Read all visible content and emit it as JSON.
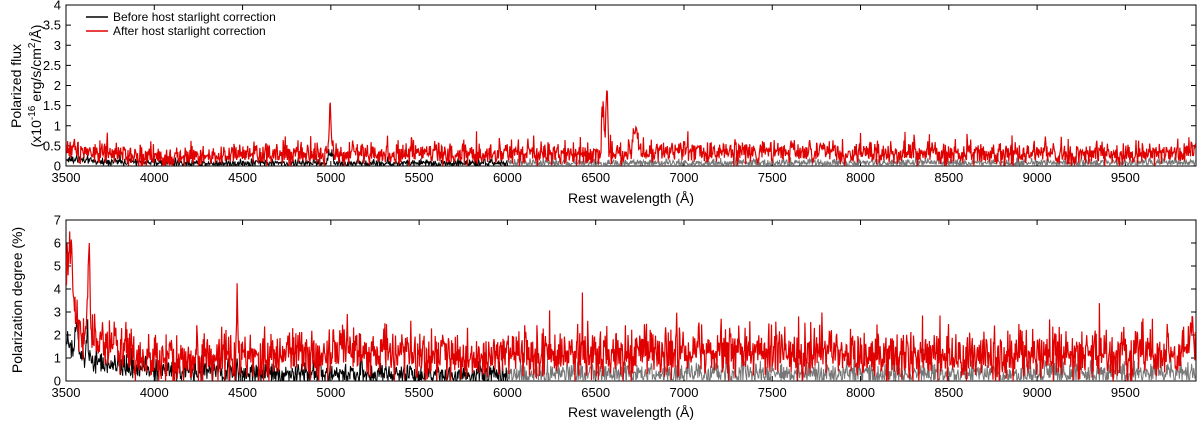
{
  "chart_data": [
    {
      "type": "line",
      "xlabel": "Rest wavelength (Å)",
      "ylabel": "Polarized flux",
      "ylabel_units": {
        "prefix": "(x10",
        "exp": "-16",
        "mid": " erg/s/cm",
        "exp2": "2",
        "suffix": "/Å)"
      },
      "xlim": [
        3500,
        9900
      ],
      "ylim": [
        0,
        4
      ],
      "xticks": [
        3500,
        4000,
        4500,
        5000,
        5500,
        6000,
        6500,
        7000,
        7500,
        8000,
        8500,
        9000,
        9500
      ],
      "yticks": [
        0,
        0.5,
        1,
        1.5,
        2,
        2.5,
        3,
        3.5,
        4
      ],
      "ytick_labels": [
        "0",
        "0.5",
        "1",
        "1.5",
        "2",
        "2.5",
        "3",
        "3.5",
        "4"
      ],
      "legend": {
        "placement": "top-left",
        "entries": [
          {
            "label": "Before host starlight correction",
            "color": "#000000"
          },
          {
            "label": "After host starlight correction",
            "color": "#e00000"
          }
        ]
      },
      "series": [
        {
          "name": "Before host starlight correction",
          "color": "#000000",
          "color_beyond_6000": "#777777",
          "baseline": [
            [
              3500,
              0.16
            ],
            [
              3700,
              0.12
            ],
            [
              4000,
              0.08
            ],
            [
              4500,
              0.07
            ],
            [
              5000,
              0.07
            ],
            [
              5500,
              0.07
            ],
            [
              6000,
              0.07
            ],
            [
              6500,
              0.07
            ],
            [
              7000,
              0.07
            ],
            [
              8000,
              0.08
            ],
            [
              9000,
              0.08
            ],
            [
              9900,
              0.08
            ]
          ],
          "noise": 0.05,
          "features": [
            [
              4990,
              0.25,
              6
            ],
            [
              5007,
              0.3,
              5
            ]
          ]
        },
        {
          "name": "After host starlight correction",
          "color": "#e00000",
          "baseline": [
            [
              3500,
              0.45
            ],
            [
              3700,
              0.32
            ],
            [
              4000,
              0.2
            ],
            [
              4500,
              0.25
            ],
            [
              5000,
              0.3
            ],
            [
              5500,
              0.3
            ],
            [
              6000,
              0.3
            ],
            [
              6500,
              0.3
            ],
            [
              7000,
              0.35
            ],
            [
              7500,
              0.35
            ],
            [
              8000,
              0.33
            ],
            [
              8500,
              0.3
            ],
            [
              9000,
              0.3
            ],
            [
              9500,
              0.3
            ],
            [
              9900,
              0.35
            ]
          ],
          "noise": 0.14,
          "features": [
            [
              4996,
              1.38,
              5
            ],
            [
              6540,
              1.3,
              6
            ],
            [
              6563,
              1.5,
              6
            ],
            [
              6717,
              0.45,
              7
            ],
            [
              6731,
              0.4,
              7
            ],
            [
              9048,
              0.35,
              5
            ],
            [
              8390,
              0.1,
              25
            ]
          ]
        }
      ]
    },
    {
      "type": "line",
      "xlabel": "Rest wavelength (Å)",
      "ylabel": "Polarization degree (%)",
      "xlim": [
        3500,
        9900
      ],
      "ylim": [
        0,
        7
      ],
      "xticks": [
        3500,
        4000,
        4500,
        5000,
        5500,
        6000,
        6500,
        7000,
        7500,
        8000,
        8500,
        9000,
        9500
      ],
      "yticks": [
        0,
        1,
        2,
        3,
        4,
        5,
        6,
        7
      ],
      "ytick_labels": [
        "0",
        "1",
        "2",
        "3",
        "4",
        "5",
        "6",
        "7"
      ],
      "series": [
        {
          "name": "Before host starlight correction",
          "color": "#000000",
          "color_beyond_6000": "#777777",
          "baseline": [
            [
              3500,
              1.8
            ],
            [
              3550,
              1.1
            ],
            [
              3700,
              0.7
            ],
            [
              4000,
              0.5
            ],
            [
              4500,
              0.35
            ],
            [
              5000,
              0.3
            ],
            [
              6000,
              0.3
            ],
            [
              7000,
              0.3
            ],
            [
              8000,
              0.3
            ],
            [
              9000,
              0.3
            ],
            [
              9900,
              0.35
            ]
          ],
          "noise": 0.25,
          "features": [
            [
              3560,
              1.4,
              8
            ],
            [
              3620,
              1.0,
              6
            ]
          ]
        },
        {
          "name": "After host starlight correction",
          "color": "#e00000",
          "baseline": [
            [
              3500,
              4.0
            ],
            [
              3550,
              2.6
            ],
            [
              3650,
              1.8
            ],
            [
              3800,
              1.4
            ],
            [
              4000,
              0.9
            ],
            [
              4300,
              1.0
            ],
            [
              4500,
              1.1
            ],
            [
              5000,
              1.2
            ],
            [
              6000,
              1.15
            ],
            [
              6500,
              1.2
            ],
            [
              7000,
              1.25
            ],
            [
              8000,
              1.2
            ],
            [
              8500,
              1.05
            ],
            [
              9000,
              1.1
            ],
            [
              9500,
              1.2
            ],
            [
              9900,
              1.3
            ]
          ],
          "noise": 0.55,
          "features": [
            [
              3630,
              4.2,
              6
            ],
            [
              3520,
              2.5,
              15
            ],
            [
              4470,
              1.4,
              5
            ],
            [
              9870,
              1.0,
              10
            ]
          ]
        }
      ]
    }
  ]
}
